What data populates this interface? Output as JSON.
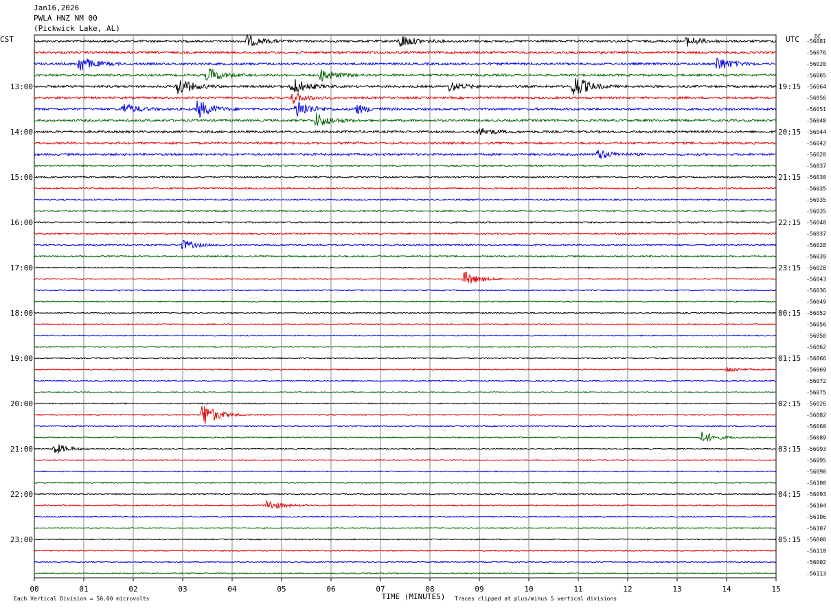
{
  "header": {
    "date": "Jan16,2026",
    "station": "PWLA HNZ NM 00",
    "location": "(Pickwick Lake, AL)"
  },
  "chart_data": {
    "type": "line",
    "title": "Jan16,2026 PWLA HNZ NM 00 (Pickwick Lake, AL)",
    "xlabel": "TIME (MINUTES)",
    "left_axis_label": "CST",
    "right_axis_label": "UTC",
    "dc_label": "DC",
    "x_ticks": [
      "00",
      "01",
      "02",
      "03",
      "04",
      "05",
      "06",
      "07",
      "08",
      "09",
      "10",
      "11",
      "12",
      "13",
      "14",
      "15"
    ],
    "xlim": [
      0,
      15
    ],
    "grid": true,
    "trace_colors": [
      "#000000",
      "#e00000",
      "#0000e0",
      "#006400"
    ],
    "left_hour_labels": [
      "13:00",
      "14:00",
      "15:00",
      "16:00",
      "17:00",
      "18:00",
      "19:00",
      "20:00",
      "21:00",
      "22:00",
      "23:00"
    ],
    "right_hour_labels": [
      "19:15",
      "20:15",
      "21:15",
      "22:15",
      "23:15",
      "00:15",
      "01:15",
      "02:15",
      "03:15",
      "04:15",
      "05:15"
    ],
    "dc_offsets": [
      "-56081",
      "-56076",
      "-56020",
      "-56065",
      "-56064",
      "-56056",
      "-56051",
      "-56048",
      "-56044",
      "-56042",
      "-56020",
      "-56037",
      "-56030",
      "-56035",
      "-56035",
      "-56035",
      "-56040",
      "-56037",
      "-56028",
      "-56039",
      "-56028",
      "-56043",
      "-56036",
      "-56049",
      "-56052",
      "-56056",
      "-56050",
      "-56062",
      "-56066",
      "-56069",
      "-56072",
      "-56075",
      "-56026",
      "-56082",
      "-56060",
      "-56089",
      "-56093",
      "-56095",
      "-56090",
      "-56100",
      "-56093",
      "-56104",
      "-56106",
      "-56107",
      "-56000",
      "-56110",
      "-56002",
      "-56113"
    ],
    "events": [
      {
        "trace": 0,
        "minute": 4.3,
        "amp": 0.6
      },
      {
        "trace": 0,
        "minute": 7.4,
        "amp": 0.7
      },
      {
        "trace": 0,
        "minute": 13.2,
        "amp": 0.5
      },
      {
        "trace": 2,
        "minute": 0.9,
        "amp": 0.9
      },
      {
        "trace": 2,
        "minute": 13.8,
        "amp": 0.8
      },
      {
        "trace": 3,
        "minute": 3.5,
        "amp": 0.8
      },
      {
        "trace": 3,
        "minute": 5.8,
        "amp": 0.7
      },
      {
        "trace": 4,
        "minute": 2.9,
        "amp": 1.0
      },
      {
        "trace": 4,
        "minute": 5.2,
        "amp": 1.0
      },
      {
        "trace": 4,
        "minute": 8.4,
        "amp": 0.5
      },
      {
        "trace": 4,
        "minute": 10.9,
        "amp": 1.3
      },
      {
        "trace": 5,
        "minute": 5.2,
        "amp": 0.6
      },
      {
        "trace": 6,
        "minute": 1.8,
        "amp": 0.6
      },
      {
        "trace": 6,
        "minute": 3.3,
        "amp": 1.0
      },
      {
        "trace": 6,
        "minute": 5.3,
        "amp": 1.0
      },
      {
        "trace": 6,
        "minute": 6.5,
        "amp": 0.5
      },
      {
        "trace": 7,
        "minute": 5.7,
        "amp": 0.8
      },
      {
        "trace": 8,
        "minute": 9.0,
        "amp": 0.4
      },
      {
        "trace": 10,
        "minute": 11.4,
        "amp": 0.5
      },
      {
        "trace": 18,
        "minute": 3.0,
        "amp": 0.5
      },
      {
        "trace": 21,
        "minute": 8.7,
        "amp": 0.8
      },
      {
        "trace": 29,
        "minute": 14.0,
        "amp": 0.3
      },
      {
        "trace": 33,
        "minute": 3.4,
        "amp": 1.4
      },
      {
        "trace": 35,
        "minute": 13.5,
        "amp": 0.6
      },
      {
        "trace": 36,
        "minute": 0.4,
        "amp": 0.6
      },
      {
        "trace": 41,
        "minute": 4.7,
        "amp": 0.6
      }
    ]
  },
  "footer": {
    "vertical_division": "Each Vertical Division =   50.00 microvolts",
    "clip_note": "Traces clipped at plus/minus 5 vertical divisions"
  }
}
